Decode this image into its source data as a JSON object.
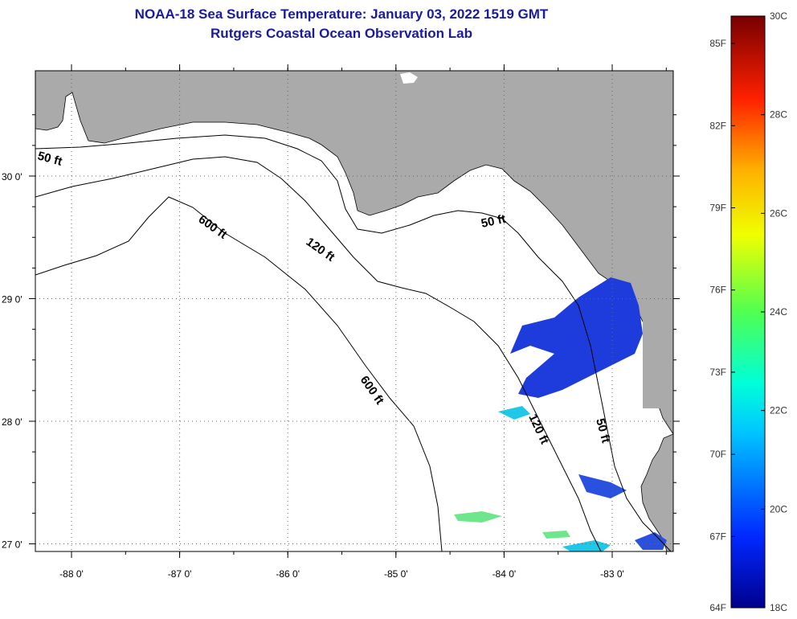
{
  "title": {
    "line1": "NOAA-18 Sea Surface Temperature:  January 03, 2022 1519 GMT",
    "line2": "Rutgers Coastal Ocean Observation Lab"
  },
  "map": {
    "lat_ticks": [
      {
        "value": 30,
        "label": "30 0'"
      },
      {
        "value": 29,
        "label": "29 0'"
      },
      {
        "value": 28,
        "label": "28 0'"
      },
      {
        "value": 27,
        "label": "27 0'"
      }
    ],
    "lon_ticks": [
      {
        "value": -88,
        "label": "-88 0'"
      },
      {
        "value": -87,
        "label": "-87 0'"
      },
      {
        "value": -86,
        "label": "-86 0'"
      },
      {
        "value": -85,
        "label": "-85 0'"
      },
      {
        "value": -84,
        "label": "-84 0'"
      },
      {
        "value": -83,
        "label": "-83 0'"
      }
    ],
    "contour_labels": [
      "50 ft",
      "600 ft",
      "120 ft",
      "50 ft",
      "600 ft",
      "120 ft",
      "50 ft"
    ],
    "colors": {
      "land": "#aaaaaa",
      "ocean": "#ffffff",
      "sst_cold": "#1e3cdc",
      "sst_cool": "#1ec8e6",
      "sst_mild": "#6ee68c"
    }
  },
  "colorbar": {
    "fahrenheit": [
      "85F",
      "82F",
      "79F",
      "76F",
      "73F",
      "70F",
      "67F",
      "64F"
    ],
    "celsius": [
      "30C",
      "28C",
      "26C",
      "24C",
      "22C",
      "20C",
      "18C"
    ]
  }
}
